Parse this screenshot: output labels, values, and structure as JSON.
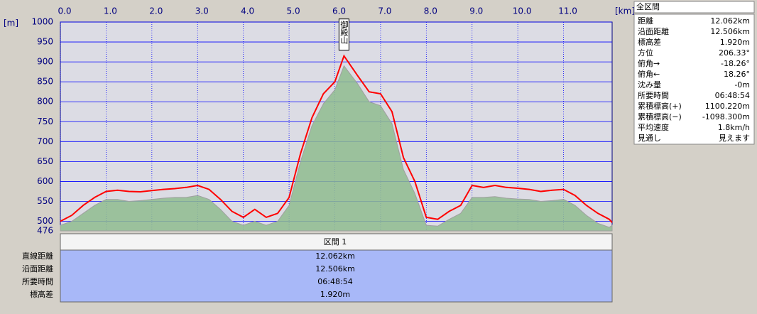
{
  "chart_data": {
    "type": "area",
    "x_label": "[km]",
    "y_label": "[m]",
    "x": [
      0,
      0.25,
      0.5,
      0.75,
      1.0,
      1.25,
      1.5,
      1.75,
      2.0,
      2.25,
      2.5,
      2.75,
      3.0,
      3.25,
      3.5,
      3.75,
      4.0,
      4.25,
      4.5,
      4.75,
      5.0,
      5.25,
      5.5,
      5.75,
      6.0,
      6.2,
      6.5,
      6.75,
      7.0,
      7.25,
      7.5,
      7.75,
      8.0,
      8.25,
      8.5,
      8.75,
      9.0,
      9.25,
      9.5,
      9.75,
      10.0,
      10.25,
      10.5,
      10.75,
      11.0,
      11.25,
      11.5,
      11.75,
      12.0,
      12.062
    ],
    "series": [
      {
        "color": "#8fbc8f",
        "kind": "area",
        "values": [
          490,
          500,
          520,
          540,
          555,
          555,
          550,
          552,
          555,
          558,
          560,
          560,
          565,
          555,
          530,
          500,
          490,
          500,
          490,
          500,
          540,
          650,
          740,
          795,
          830,
          890,
          845,
          800,
          790,
          745,
          630,
          570,
          490,
          488,
          505,
          520,
          560,
          560,
          562,
          558,
          556,
          555,
          550,
          552,
          555,
          540,
          515,
          495,
          485,
          490
        ]
      },
      {
        "color": "#ff0000",
        "kind": "line",
        "values": [
          500,
          515,
          540,
          560,
          575,
          578,
          575,
          574,
          577,
          580,
          582,
          585,
          590,
          580,
          555,
          525,
          510,
          530,
          510,
          520,
          560,
          670,
          760,
          820,
          850,
          915,
          865,
          825,
          820,
          775,
          660,
          600,
          510,
          505,
          525,
          540,
          590,
          585,
          590,
          585,
          583,
          580,
          575,
          578,
          580,
          565,
          540,
          520,
          505,
          497
        ]
      }
    ],
    "xlim": [
      0,
      12.062
    ],
    "xticks": [
      {
        "value": 0,
        "label": "0.0"
      },
      {
        "value": 1,
        "label": "1.0"
      },
      {
        "value": 2,
        "label": "2.0"
      },
      {
        "value": 3,
        "label": "3.0"
      },
      {
        "value": 4,
        "label": "4.0"
      },
      {
        "value": 5,
        "label": "5.0"
      },
      {
        "value": 6,
        "label": "6.0"
      },
      {
        "value": 7,
        "label": "7.0"
      },
      {
        "value": 8,
        "label": "8.0"
      },
      {
        "value": 9,
        "label": "9.0"
      },
      {
        "value": 10,
        "label": "10.0"
      },
      {
        "value": 11,
        "label": "11.0"
      }
    ],
    "ylim": [
      476,
      1000
    ],
    "yticks": [
      476,
      500,
      550,
      600,
      650,
      700,
      750,
      800,
      850,
      900,
      950,
      1000
    ],
    "grid": true,
    "annotation": {
      "text": "御殿山",
      "x": 6.2,
      "y": 915
    }
  },
  "summary": {
    "title": "全区間",
    "rows": [
      [
        "距離",
        "12.062km"
      ],
      [
        "沿面距離",
        "12.506km"
      ],
      [
        "標高差",
        "1.920m"
      ],
      [
        "方位",
        "206.33°"
      ],
      [
        "俯角→",
        "-18.26°"
      ],
      [
        "俯角←",
        "18.26°"
      ],
      [
        "沈み量",
        "-0m"
      ],
      [
        "所要時間",
        "06:48:54"
      ],
      [
        "累積標高(+)",
        "1100.220m"
      ],
      [
        "累積標高(−)",
        "-1098.300m"
      ],
      [
        "平均速度",
        "1.8km/h"
      ],
      [
        "見通し",
        "見えます"
      ]
    ]
  },
  "sections": {
    "header": "区間 1",
    "rows": [
      [
        "直線距離",
        "12.062km"
      ],
      [
        "沿面距離",
        "12.506km"
      ],
      [
        "所要時間",
        "06:48:54"
      ],
      [
        "標高差",
        "1.920m"
      ]
    ]
  }
}
